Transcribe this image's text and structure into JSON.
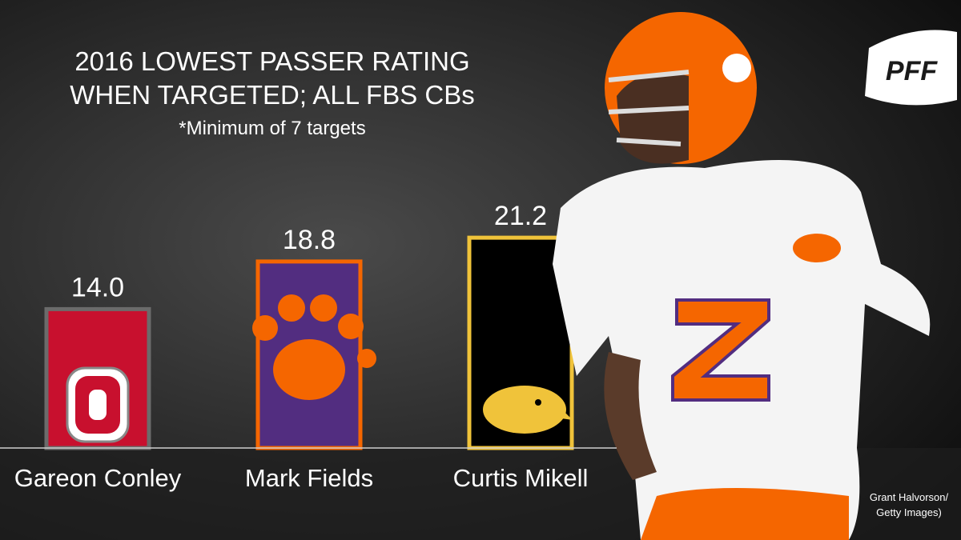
{
  "chart_data": {
    "type": "bar",
    "title": [
      "2016 LOWEST PASSER RATING",
      "WHEN TARGETED; ALL FBS CBs"
    ],
    "subtitle": "*Minimum of 7 targets",
    "categories": [
      "Gareon Conley",
      "Mark Fields",
      "Curtis Mikell"
    ],
    "values": [
      14.0,
      18.8,
      21.2
    ],
    "value_labels": [
      "14.0",
      "18.8",
      "21.2"
    ],
    "colors": [
      "#c8102e",
      "#522d80",
      "#000000"
    ],
    "border_colors": [
      "#6b6b6b",
      "#f56600",
      "#f0c33a"
    ],
    "logo": "PFF",
    "credit": [
      "Grant Halvorson/",
      "Getty Images)"
    ]
  }
}
